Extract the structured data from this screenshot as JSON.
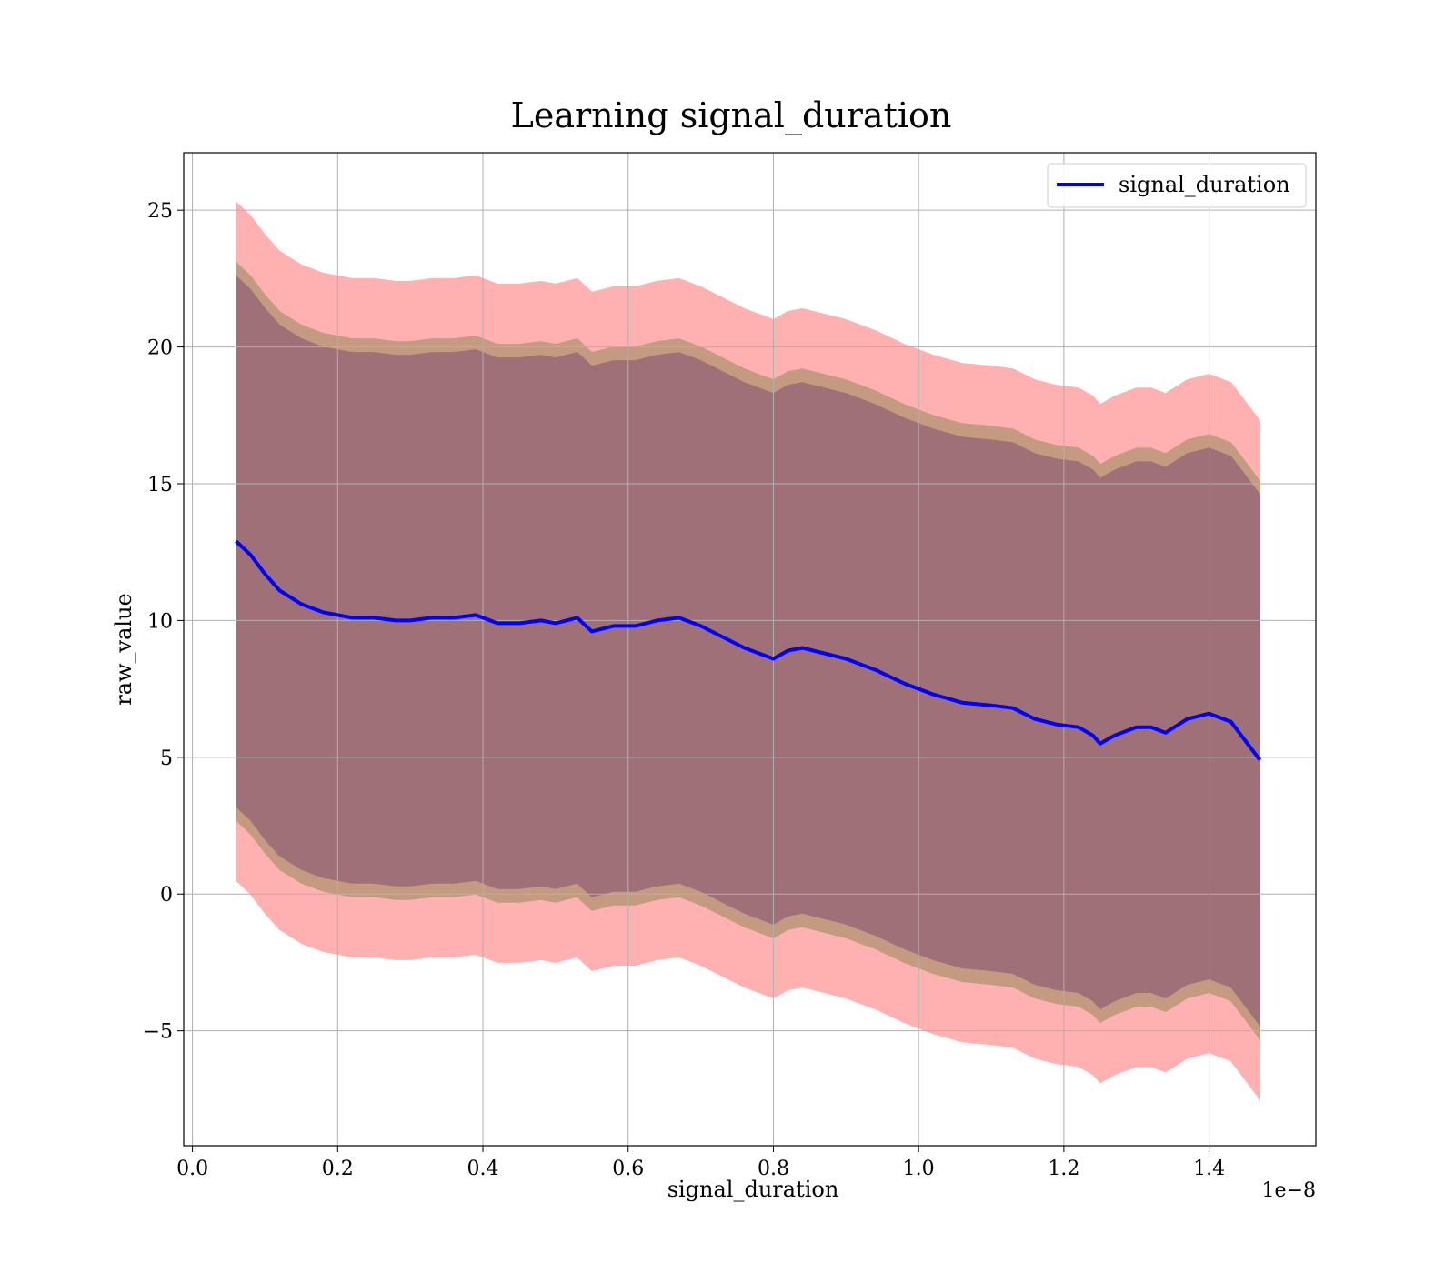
{
  "chart_data": {
    "type": "line",
    "title": "Learning signal_duration",
    "xlabel": "signal_duration",
    "ylabel": "raw_value",
    "x_offset_label": "1e−8",
    "xlim": [
      -0.012,
      1.547
    ],
    "ylim": [
      -9.2,
      27.1
    ],
    "x_ticks": [
      0.0,
      0.2,
      0.4,
      0.6,
      0.8,
      1.0,
      1.2,
      1.4
    ],
    "x_tick_labels": [
      "0.0",
      "0.2",
      "0.4",
      "0.6",
      "0.8",
      "1.0",
      "1.2",
      "1.4"
    ],
    "y_ticks": [
      -5,
      0,
      5,
      10,
      15,
      20,
      25
    ],
    "y_tick_labels": [
      "−5",
      "0",
      "5",
      "10",
      "15",
      "20",
      "25"
    ],
    "grid": true,
    "legend": {
      "position": "top-right",
      "entries": [
        "signal_duration"
      ]
    },
    "colors": {
      "mean_line": "#0000ff",
      "band_outer": "#ffb0b0",
      "band_middle": "#c49a80",
      "band_inner": "#a07078"
    },
    "x": [
      0.06,
      0.08,
      0.1,
      0.12,
      0.15,
      0.18,
      0.2,
      0.22,
      0.25,
      0.28,
      0.3,
      0.33,
      0.36,
      0.39,
      0.42,
      0.45,
      0.48,
      0.5,
      0.53,
      0.55,
      0.58,
      0.61,
      0.64,
      0.67,
      0.7,
      0.73,
      0.76,
      0.79,
      0.8,
      0.82,
      0.84,
      0.87,
      0.9,
      0.94,
      0.98,
      1.02,
      1.06,
      1.1,
      1.13,
      1.16,
      1.19,
      1.22,
      1.24,
      1.25,
      1.27,
      1.3,
      1.32,
      1.34,
      1.37,
      1.4,
      1.43,
      1.47
    ],
    "series": [
      {
        "name": "signal_duration",
        "role": "mean",
        "values": [
          12.9,
          12.4,
          11.7,
          11.1,
          10.6,
          10.3,
          10.2,
          10.1,
          10.1,
          10.0,
          10.0,
          10.1,
          10.1,
          10.2,
          9.9,
          9.9,
          10.0,
          9.9,
          10.1,
          9.6,
          9.8,
          9.8,
          10.0,
          10.1,
          9.8,
          9.4,
          9.0,
          8.7,
          8.6,
          8.9,
          9.0,
          8.8,
          8.6,
          8.2,
          7.7,
          7.3,
          7.0,
          6.9,
          6.8,
          6.4,
          6.2,
          6.1,
          5.8,
          5.5,
          5.8,
          6.1,
          6.1,
          5.9,
          6.4,
          6.6,
          6.3,
          4.9
        ]
      }
    ],
    "bands": [
      {
        "role": "outer",
        "half_width": 12.4
      },
      {
        "role": "middle",
        "half_width": 10.2
      },
      {
        "role": "inner",
        "half_width": 9.7
      }
    ]
  }
}
